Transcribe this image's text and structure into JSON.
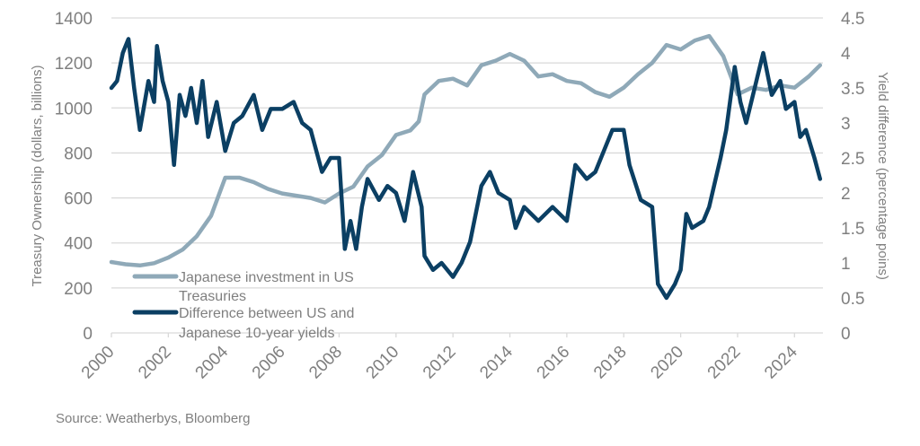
{
  "chart_data": {
    "type": "line",
    "title": "",
    "xlabel": "",
    "ylabel": "Treasury Ownership (dollars, billions)",
    "y2label": "Yield difference (percentage poins)",
    "xlim": [
      2000,
      2025
    ],
    "ylim": [
      0,
      1400
    ],
    "y2lim": [
      0,
      4.5
    ],
    "x_ticks": [
      "2000",
      "2002",
      "2004",
      "2006",
      "2008",
      "2010",
      "2012",
      "2014",
      "2016",
      "2018",
      "2020",
      "2022",
      "2024"
    ],
    "y_ticks": [
      "0",
      "200",
      "400",
      "600",
      "800",
      "1000",
      "1200",
      "1400"
    ],
    "y2_ticks": [
      "0",
      "0.5",
      "1",
      "1.5",
      "2",
      "2.5",
      "3",
      "3.5",
      "4",
      "4.5"
    ],
    "grid": true,
    "legend_position": "bottom-left",
    "series": [
      {
        "name": "Japanese investment in US Treasuries",
        "axis": "left",
        "color": "#8fa9b8",
        "x": [
          2000.0,
          2000.5,
          2001.0,
          2001.5,
          2002.0,
          2002.5,
          2003.0,
          2003.5,
          2004.0,
          2004.5,
          2005.0,
          2005.5,
          2006.0,
          2006.5,
          2007.0,
          2007.5,
          2008.0,
          2008.5,
          2009.0,
          2009.5,
          2010.0,
          2010.5,
          2010.8,
          2011.0,
          2011.5,
          2012.0,
          2012.5,
          2013.0,
          2013.5,
          2014.0,
          2014.5,
          2015.0,
          2015.5,
          2016.0,
          2016.5,
          2017.0,
          2017.5,
          2018.0,
          2018.5,
          2019.0,
          2019.5,
          2020.0,
          2020.5,
          2021.0,
          2021.5,
          2022.0,
          2022.5,
          2023.0,
          2023.5,
          2024.0,
          2024.5,
          2024.9
        ],
        "values": [
          315,
          305,
          300,
          310,
          335,
          370,
          430,
          520,
          690,
          690,
          670,
          640,
          620,
          610,
          600,
          580,
          620,
          650,
          740,
          790,
          880,
          900,
          940,
          1060,
          1120,
          1130,
          1100,
          1190,
          1210,
          1240,
          1210,
          1140,
          1150,
          1120,
          1110,
          1070,
          1050,
          1090,
          1150,
          1200,
          1280,
          1260,
          1300,
          1320,
          1230,
          1060,
          1090,
          1080,
          1100,
          1090,
          1140,
          1190
        ]
      },
      {
        "name": "Difference between US and Japanese 10-year yields",
        "axis": "right",
        "color": "#0b3f63",
        "x": [
          2000.0,
          2000.2,
          2000.4,
          2000.6,
          2000.8,
          2001.0,
          2001.3,
          2001.5,
          2001.6,
          2001.8,
          2002.0,
          2002.2,
          2002.4,
          2002.6,
          2002.8,
          2003.0,
          2003.2,
          2003.4,
          2003.7,
          2004.0,
          2004.3,
          2004.6,
          2005.0,
          2005.3,
          2005.6,
          2006.0,
          2006.4,
          2006.7,
          2007.0,
          2007.4,
          2007.7,
          2008.0,
          2008.2,
          2008.4,
          2008.6,
          2008.8,
          2009.0,
          2009.4,
          2009.7,
          2010.0,
          2010.3,
          2010.6,
          2010.9,
          2011.0,
          2011.3,
          2011.6,
          2012.0,
          2012.3,
          2012.6,
          2013.0,
          2013.3,
          2013.6,
          2014.0,
          2014.2,
          2014.5,
          2015.0,
          2015.5,
          2016.0,
          2016.3,
          2016.7,
          2017.0,
          2017.3,
          2017.6,
          2018.0,
          2018.2,
          2018.6,
          2019.0,
          2019.2,
          2019.5,
          2019.8,
          2020.0,
          2020.2,
          2020.4,
          2020.8,
          2021.0,
          2021.4,
          2021.6,
          2021.9,
          2022.1,
          2022.3,
          2022.6,
          2022.9,
          2023.2,
          2023.5,
          2023.7,
          2024.0,
          2024.2,
          2024.4,
          2024.7,
          2024.9
        ],
        "values": [
          3.5,
          3.6,
          4.0,
          4.2,
          3.5,
          2.9,
          3.6,
          3.3,
          4.1,
          3.6,
          3.3,
          2.4,
          3.4,
          3.1,
          3.5,
          3.0,
          3.6,
          2.8,
          3.3,
          2.6,
          3.0,
          3.1,
          3.4,
          2.9,
          3.2,
          3.2,
          3.3,
          3.0,
          2.9,
          2.3,
          2.5,
          2.5,
          1.2,
          1.6,
          1.2,
          1.8,
          2.2,
          1.9,
          2.1,
          2.0,
          1.6,
          2.3,
          1.8,
          1.1,
          0.9,
          1.0,
          0.8,
          1.0,
          1.3,
          2.1,
          2.3,
          2.0,
          1.9,
          1.5,
          1.8,
          1.6,
          1.8,
          1.6,
          2.4,
          2.2,
          2.3,
          2.6,
          2.9,
          2.9,
          2.4,
          1.9,
          1.8,
          0.7,
          0.5,
          0.7,
          0.9,
          1.7,
          1.5,
          1.6,
          1.8,
          2.5,
          2.9,
          3.8,
          3.3,
          3.0,
          3.5,
          4.0,
          3.4,
          3.6,
          3.2,
          3.3,
          2.8,
          2.9,
          2.5,
          2.2
        ]
      }
    ],
    "legend": [
      {
        "line1": "Japanese investment in US",
        "line2": "Treasuries"
      },
      {
        "line1": "Difference between US and",
        "line2": "Japanese 10-year yields"
      }
    ]
  },
  "source": "Source: Weatherbys, Bloomberg"
}
